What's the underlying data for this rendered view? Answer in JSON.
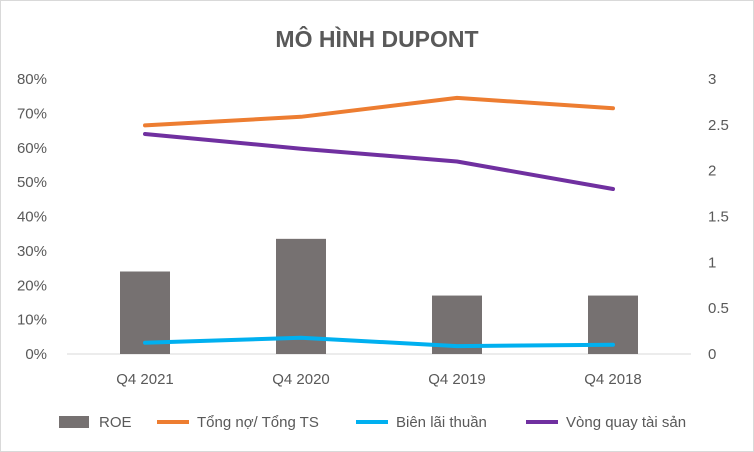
{
  "chart_data": {
    "type": "bar",
    "title": "MÔ HÌNH DUPONT",
    "categories": [
      "Q4 2021",
      "Q4 2020",
      "Q4 2019",
      "Q4 2018"
    ],
    "y_left": {
      "min": 0,
      "max": 0.8,
      "step": 0.1,
      "tick_labels": [
        "0%",
        "10%",
        "20%",
        "30%",
        "40%",
        "50%",
        "60%",
        "70%",
        "80%"
      ]
    },
    "y_right": {
      "min": 0,
      "max": 3,
      "step": 0.5,
      "tick_labels": [
        "0",
        "0.5",
        "1",
        "1.5",
        "2",
        "2.5",
        "3"
      ]
    },
    "grid": false,
    "legend_position": "bottom",
    "series": [
      {
        "name": "ROE",
        "kind": "bar",
        "axis": "left",
        "color": "#767171",
        "values": [
          0.24,
          0.335,
          0.17,
          0.17
        ]
      },
      {
        "name": "Tổng nợ/ Tổng TS",
        "kind": "line",
        "axis": "left",
        "color": "#ED7D31",
        "values": [
          0.665,
          0.69,
          0.745,
          0.715
        ]
      },
      {
        "name": "Biên lãi thuần",
        "kind": "line",
        "axis": "left",
        "color": "#00B0F0",
        "values": [
          0.033,
          0.047,
          0.023,
          0.027
        ]
      },
      {
        "name": "Vòng quay tài sản",
        "kind": "line",
        "axis": "right",
        "color": "#7030A0",
        "values": [
          2.4,
          2.24,
          2.1,
          1.8
        ]
      }
    ]
  }
}
